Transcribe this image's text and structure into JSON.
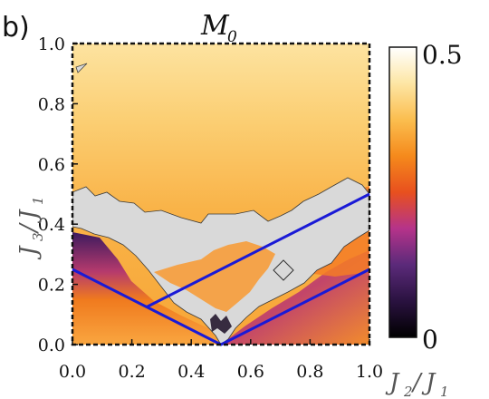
{
  "panel_label": "b)",
  "title_main": "M",
  "title_sub": "0",
  "colorbar": {
    "max_label": "0.5",
    "min_label": "0",
    "stops": [
      "#000000",
      "#2a1240",
      "#5b2a7a",
      "#b5338a",
      "#e8501e",
      "#f58a1c",
      "#fbbe4f",
      "#fde6a4",
      "#ffffff"
    ]
  },
  "chart_data": {
    "type": "heatmap",
    "xlabel_main": "J",
    "xlabel_sub1": "2",
    "xlabel_sep": "/",
    "xlabel_sub2": "1",
    "ylabel_main": "J",
    "ylabel_sub1": "3",
    "ylabel_sep": "/",
    "ylabel_sub2": "1",
    "xlim": [
      0,
      1
    ],
    "ylim": [
      0,
      1
    ],
    "x_ticks": [
      "0.0",
      "0.2",
      "0.4",
      "0.6",
      "0.8",
      "1.0"
    ],
    "y_ticks": [
      "0.0",
      "0.2",
      "0.4",
      "0.6",
      "0.8",
      "1.0"
    ],
    "value_range": [
      0,
      0.5
    ],
    "lines": [
      {
        "points": [
          [
            0.0,
            0.25
          ],
          [
            0.5,
            0.0
          ],
          [
            1.0,
            0.25
          ]
        ]
      },
      {
        "points": [
          [
            0.25,
            0.125
          ],
          [
            1.0,
            0.5
          ]
        ]
      }
    ]
  }
}
